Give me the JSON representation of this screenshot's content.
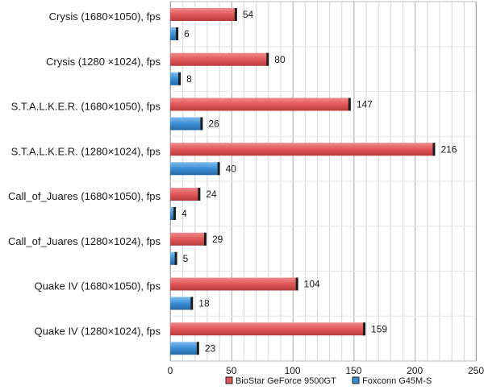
{
  "chart_data": {
    "type": "bar",
    "orientation": "horizontal",
    "categories": [
      "Crysis (1680×1050), fps",
      "Crysis (1280 ×1024), fps",
      "S.T.A.L.K.E.R. (1680×1050), fps",
      "S.T.A.L.K.E.R. (1280×1024), fps",
      "Call_of_Juares (1680×1050), fps",
      "Call_of_Juares (1280×1024), fps",
      "Quake IV (1680×1050), fps",
      "Quake IV (1280×1024), fps"
    ],
    "series": [
      {
        "name": "BioStar GeForce 9500GT",
        "color": "#e15759",
        "values": [
          54,
          80,
          147,
          216,
          24,
          29,
          104,
          159
        ]
      },
      {
        "name": "Foxconn G45M-S",
        "color": "#3b8fd4",
        "values": [
          6,
          8,
          26,
          40,
          4,
          5,
          18,
          23
        ]
      }
    ],
    "xlim": [
      0,
      250
    ],
    "xticks": [
      0,
      50,
      100,
      150,
      200,
      250
    ],
    "grid": true,
    "legend_position": "bottom"
  }
}
